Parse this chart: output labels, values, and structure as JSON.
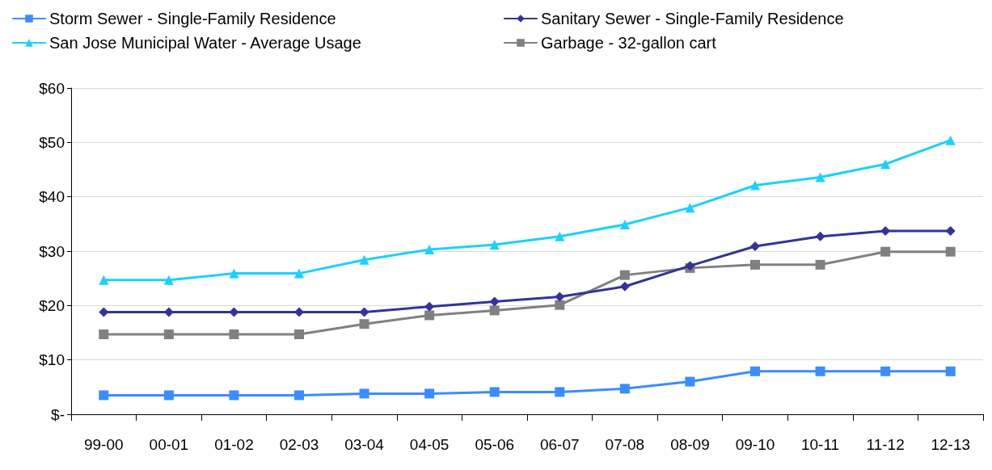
{
  "chart_data": {
    "type": "line",
    "categories": [
      "99-00",
      "00-01",
      "01-02",
      "02-03",
      "03-04",
      "04-05",
      "05-06",
      "06-07",
      "07-08",
      "08-09",
      "09-10",
      "10-11",
      "11-12",
      "12-13"
    ],
    "series": [
      {
        "name": "Storm Sewer - Single-Family Residence",
        "color": "#3a8dff",
        "marker": "square",
        "values": [
          3.5,
          3.5,
          3.5,
          3.5,
          3.8,
          3.8,
          4.1,
          4.1,
          4.7,
          6.0,
          7.9,
          7.9,
          7.9,
          7.9
        ]
      },
      {
        "name": "Sanitary Sewer - Single-Family Residence",
        "color": "#333399",
        "marker": "diamond",
        "values": [
          18.8,
          18.8,
          18.8,
          18.8,
          18.8,
          19.8,
          20.7,
          21.6,
          23.5,
          27.3,
          30.9,
          32.7,
          33.7,
          33.7
        ]
      },
      {
        "name": "San Jose Municipal Water - Average Usage",
        "color": "#1ad1ff",
        "marker": "triangle",
        "values": [
          24.7,
          24.7,
          25.9,
          25.9,
          28.4,
          30.3,
          31.2,
          32.7,
          34.9,
          38.0,
          42.1,
          43.6,
          46.0,
          50.4
        ]
      },
      {
        "name": "Garbage - 32-gallon cart",
        "color": "#808080",
        "marker": "square",
        "values": [
          14.7,
          14.7,
          14.7,
          14.7,
          16.6,
          18.2,
          19.1,
          20.1,
          25.6,
          26.9,
          27.5,
          27.5,
          29.9,
          29.9
        ]
      }
    ],
    "ylim": [
      0,
      60
    ],
    "yticks": [
      {
        "value": 0,
        "label": "$-"
      },
      {
        "value": 10,
        "label": "$10"
      },
      {
        "value": 20,
        "label": "$20"
      },
      {
        "value": 30,
        "label": "$30"
      },
      {
        "value": 40,
        "label": "$40"
      },
      {
        "value": 50,
        "label": "$50"
      },
      {
        "value": 60,
        "label": "$60"
      }
    ],
    "grid": "y",
    "legend": "top",
    "line_style": "solid"
  }
}
